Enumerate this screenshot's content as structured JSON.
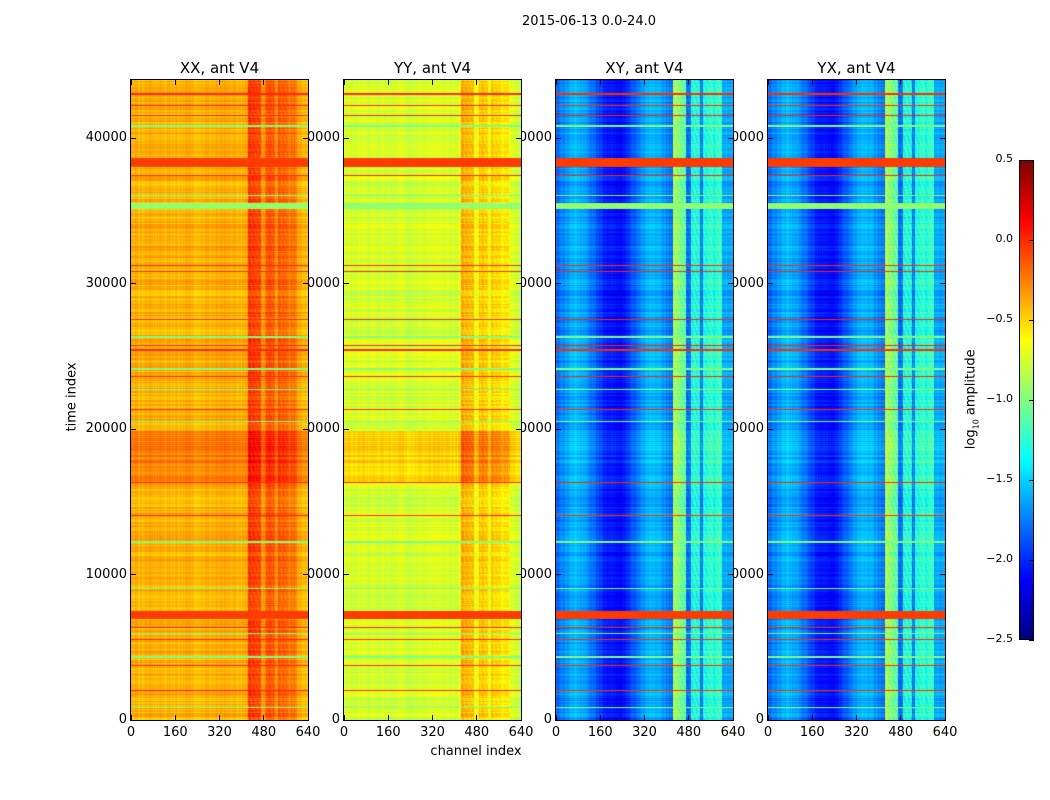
{
  "figure_title": "2015-06-13 0.0-24.0",
  "chart_data": {
    "type": "heatmap",
    "title": "2015-06-13 0.0-24.0",
    "xlabel": "channel index",
    "ylabel": "time index",
    "xlim": [
      0,
      640
    ],
    "ylim": [
      0,
      44000
    ],
    "xticks": [
      "0",
      "160",
      "320",
      "480",
      "640"
    ],
    "xtick_values": [
      0,
      160,
      320,
      480,
      640
    ],
    "yticks": [
      "0",
      "10000",
      "20000",
      "30000",
      "40000"
    ],
    "ytick_values": [
      0,
      10000,
      20000,
      30000,
      40000
    ],
    "colormap": "jet",
    "panels": [
      {
        "title": "XX, ant V4",
        "typical_log10_amplitude": -0.4,
        "rfi_channel_boost": 0.35,
        "block_boost": 0.15
      },
      {
        "title": "YY, ant V4",
        "typical_log10_amplitude": -0.75,
        "rfi_channel_boost": 0.35,
        "block_boost": 0.25
      },
      {
        "title": "XY, ant V4",
        "typical_log10_amplitude": -1.85,
        "rfi_channel_boost": 1.0,
        "block_boost": 0.05
      },
      {
        "title": "YX, ant V4",
        "typical_log10_amplitude": -1.85,
        "rfi_channel_boost": 1.0,
        "block_boost": 0.05
      }
    ],
    "rfi_channel_range": [
      420,
      600
    ],
    "elevated_time_block": [
      16300,
      19800
    ],
    "flagged_bands": [
      {
        "start": 38000,
        "end": 38600,
        "value": -0.05
      },
      {
        "start": 6900,
        "end": 7450,
        "value": -0.05
      },
      {
        "start": 35100,
        "end": 35500,
        "value": -0.95
      }
    ],
    "flagged_rows": [
      {
        "t": 43000,
        "value": 0.0
      },
      {
        "t": 42200,
        "value": 0.0
      },
      {
        "t": 41500,
        "value": 0.0
      },
      {
        "t": 40800,
        "value": -1.0
      },
      {
        "t": 37400,
        "value": 0.0
      },
      {
        "t": 36000,
        "value": -1.0
      },
      {
        "t": 31200,
        "value": 0.0
      },
      {
        "t": 30800,
        "value": 0.0
      },
      {
        "t": 27500,
        "value": 0.0
      },
      {
        "t": 26300,
        "value": -1.0
      },
      {
        "t": 25700,
        "value": 0.0
      },
      {
        "t": 25400,
        "value": 0.0
      },
      {
        "t": 24100,
        "value": -1.0
      },
      {
        "t": 23600,
        "value": 0.0
      },
      {
        "t": 22700,
        "value": -1.0
      },
      {
        "t": 21300,
        "value": 0.0
      },
      {
        "t": 20500,
        "value": -1.0
      },
      {
        "t": 16300,
        "value": 0.0
      },
      {
        "t": 14000,
        "value": 0.0
      },
      {
        "t": 12200,
        "value": -1.0
      },
      {
        "t": 9000,
        "value": -1.0
      },
      {
        "t": 6300,
        "value": 0.0
      },
      {
        "t": 5900,
        "value": -1.0
      },
      {
        "t": 5500,
        "value": 0.0
      },
      {
        "t": 4300,
        "value": -1.0
      },
      {
        "t": 3700,
        "value": 0.0
      },
      {
        "t": 2000,
        "value": 0.0
      },
      {
        "t": 800,
        "value": -1.0
      }
    ],
    "colorbar": {
      "label": "log10 amplitude",
      "label_main": "log",
      "label_sub": "10",
      "label_rest": " amplitude",
      "range": [
        -2.5,
        0.5
      ],
      "ticks": [
        "0.5",
        "0.0",
        "−0.5",
        "−1.0",
        "−1.5",
        "−2.0",
        "−2.5"
      ],
      "tick_values": [
        0.5,
        0.0,
        -0.5,
        -1.0,
        -1.5,
        -2.0,
        -2.5
      ]
    }
  }
}
